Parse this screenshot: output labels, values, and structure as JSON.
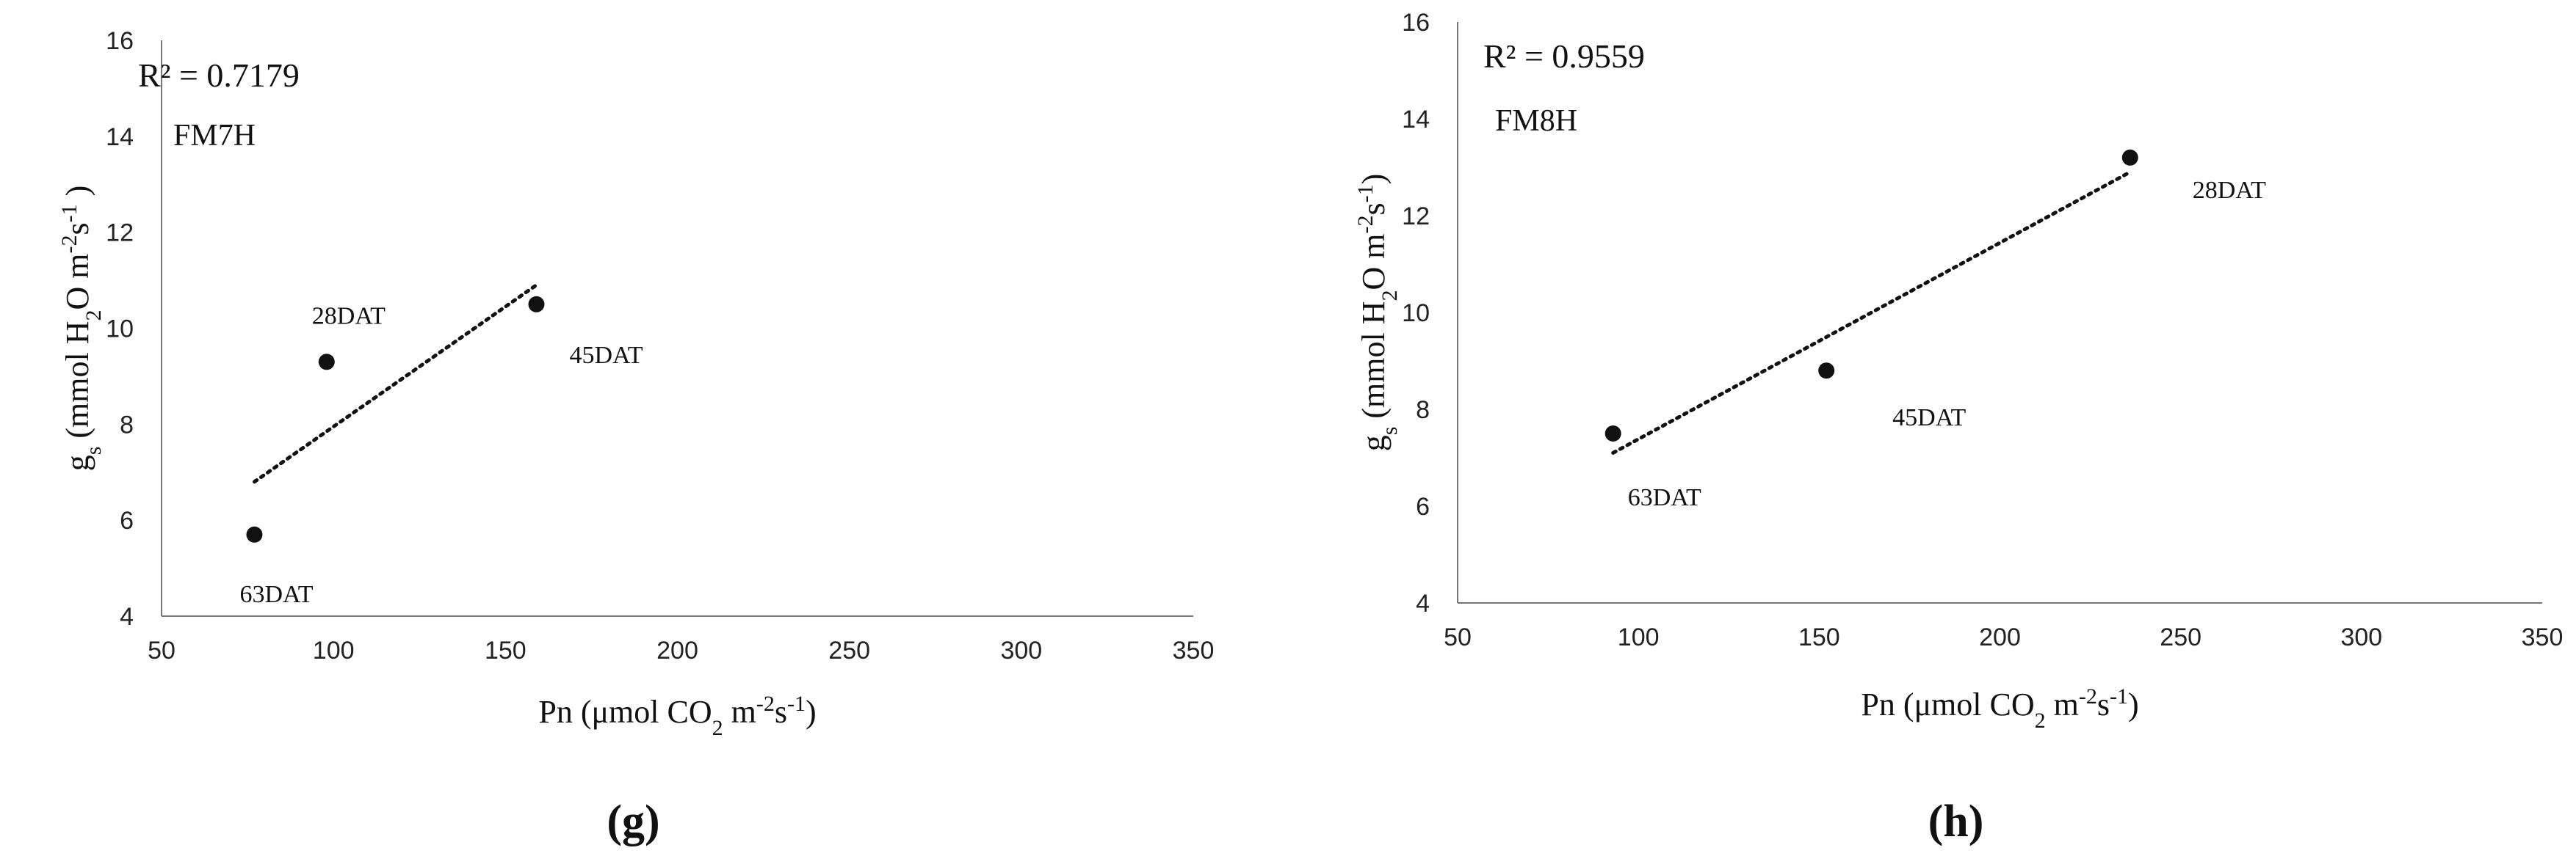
{
  "chart_data": [
    {
      "type": "scatter",
      "panel_label": "(g)",
      "r2": "R² = 0.7179",
      "series_name": "FM7H",
      "xlabel": {
        "main": "Pn (μmol  CO",
        "sub1": "2",
        "mid": " m",
        "sup1": "-2",
        "s": "s",
        "sup2": "-1",
        "end": ")"
      },
      "ylabel": {
        "g": "g",
        "gsub": "s",
        "main": " (mmol  H",
        "sub1": "2",
        "mid": "O m",
        "sup1": "-2",
        "s": "s",
        "sup2": "-1",
        "end": " )"
      },
      "xlim": [
        50,
        350
      ],
      "ylim": [
        4,
        16
      ],
      "xticks": [
        "50",
        "100",
        "150",
        "200",
        "250",
        "300",
        "350"
      ],
      "yticks": [
        "4",
        "6",
        "8",
        "10",
        "12",
        "14",
        "16"
      ],
      "points": [
        {
          "x": 98,
          "y": 9.3,
          "label": "28DAT"
        },
        {
          "x": 159,
          "y": 10.5,
          "label": "45DAT"
        },
        {
          "x": 77,
          "y": 5.7,
          "label": "63DAT"
        }
      ],
      "trendline": {
        "x": [
          77,
          159
        ],
        "y": [
          6.8,
          10.9
        ],
        "style": "dotted"
      }
    },
    {
      "type": "scatter",
      "panel_label": "(h)",
      "r2": "R² = 0.9559",
      "series_name": "FM8H",
      "xlabel": {
        "main": "Pn (μmol  CO",
        "sub1": "2",
        "mid": " m",
        "sup1": "-2",
        "s": "s",
        "sup2": "-1",
        "end": ")"
      },
      "ylabel": {
        "g": "g",
        "gsub": "s",
        "main": " (mmol  H",
        "sub1": "2",
        "mid": "O m",
        "sup1": "-2",
        "s": "s",
        "sup2": "-1",
        "end": ")"
      },
      "xlim": [
        50,
        350
      ],
      "ylim": [
        4,
        16
      ],
      "xticks": [
        "50",
        "100",
        "150",
        "200",
        "250",
        "300",
        "350"
      ],
      "yticks": [
        "4",
        "6",
        "8",
        "10",
        "12",
        "14",
        "16"
      ],
      "points": [
        {
          "x": 236,
          "y": 13.2,
          "label": "28DAT"
        },
        {
          "x": 152,
          "y": 8.8,
          "label": "45DAT"
        },
        {
          "x": 93,
          "y": 7.5,
          "label": "63DAT"
        }
      ],
      "trendline": {
        "x": [
          93,
          236
        ],
        "y": [
          7.1,
          12.9
        ],
        "style": "dotted"
      }
    }
  ]
}
